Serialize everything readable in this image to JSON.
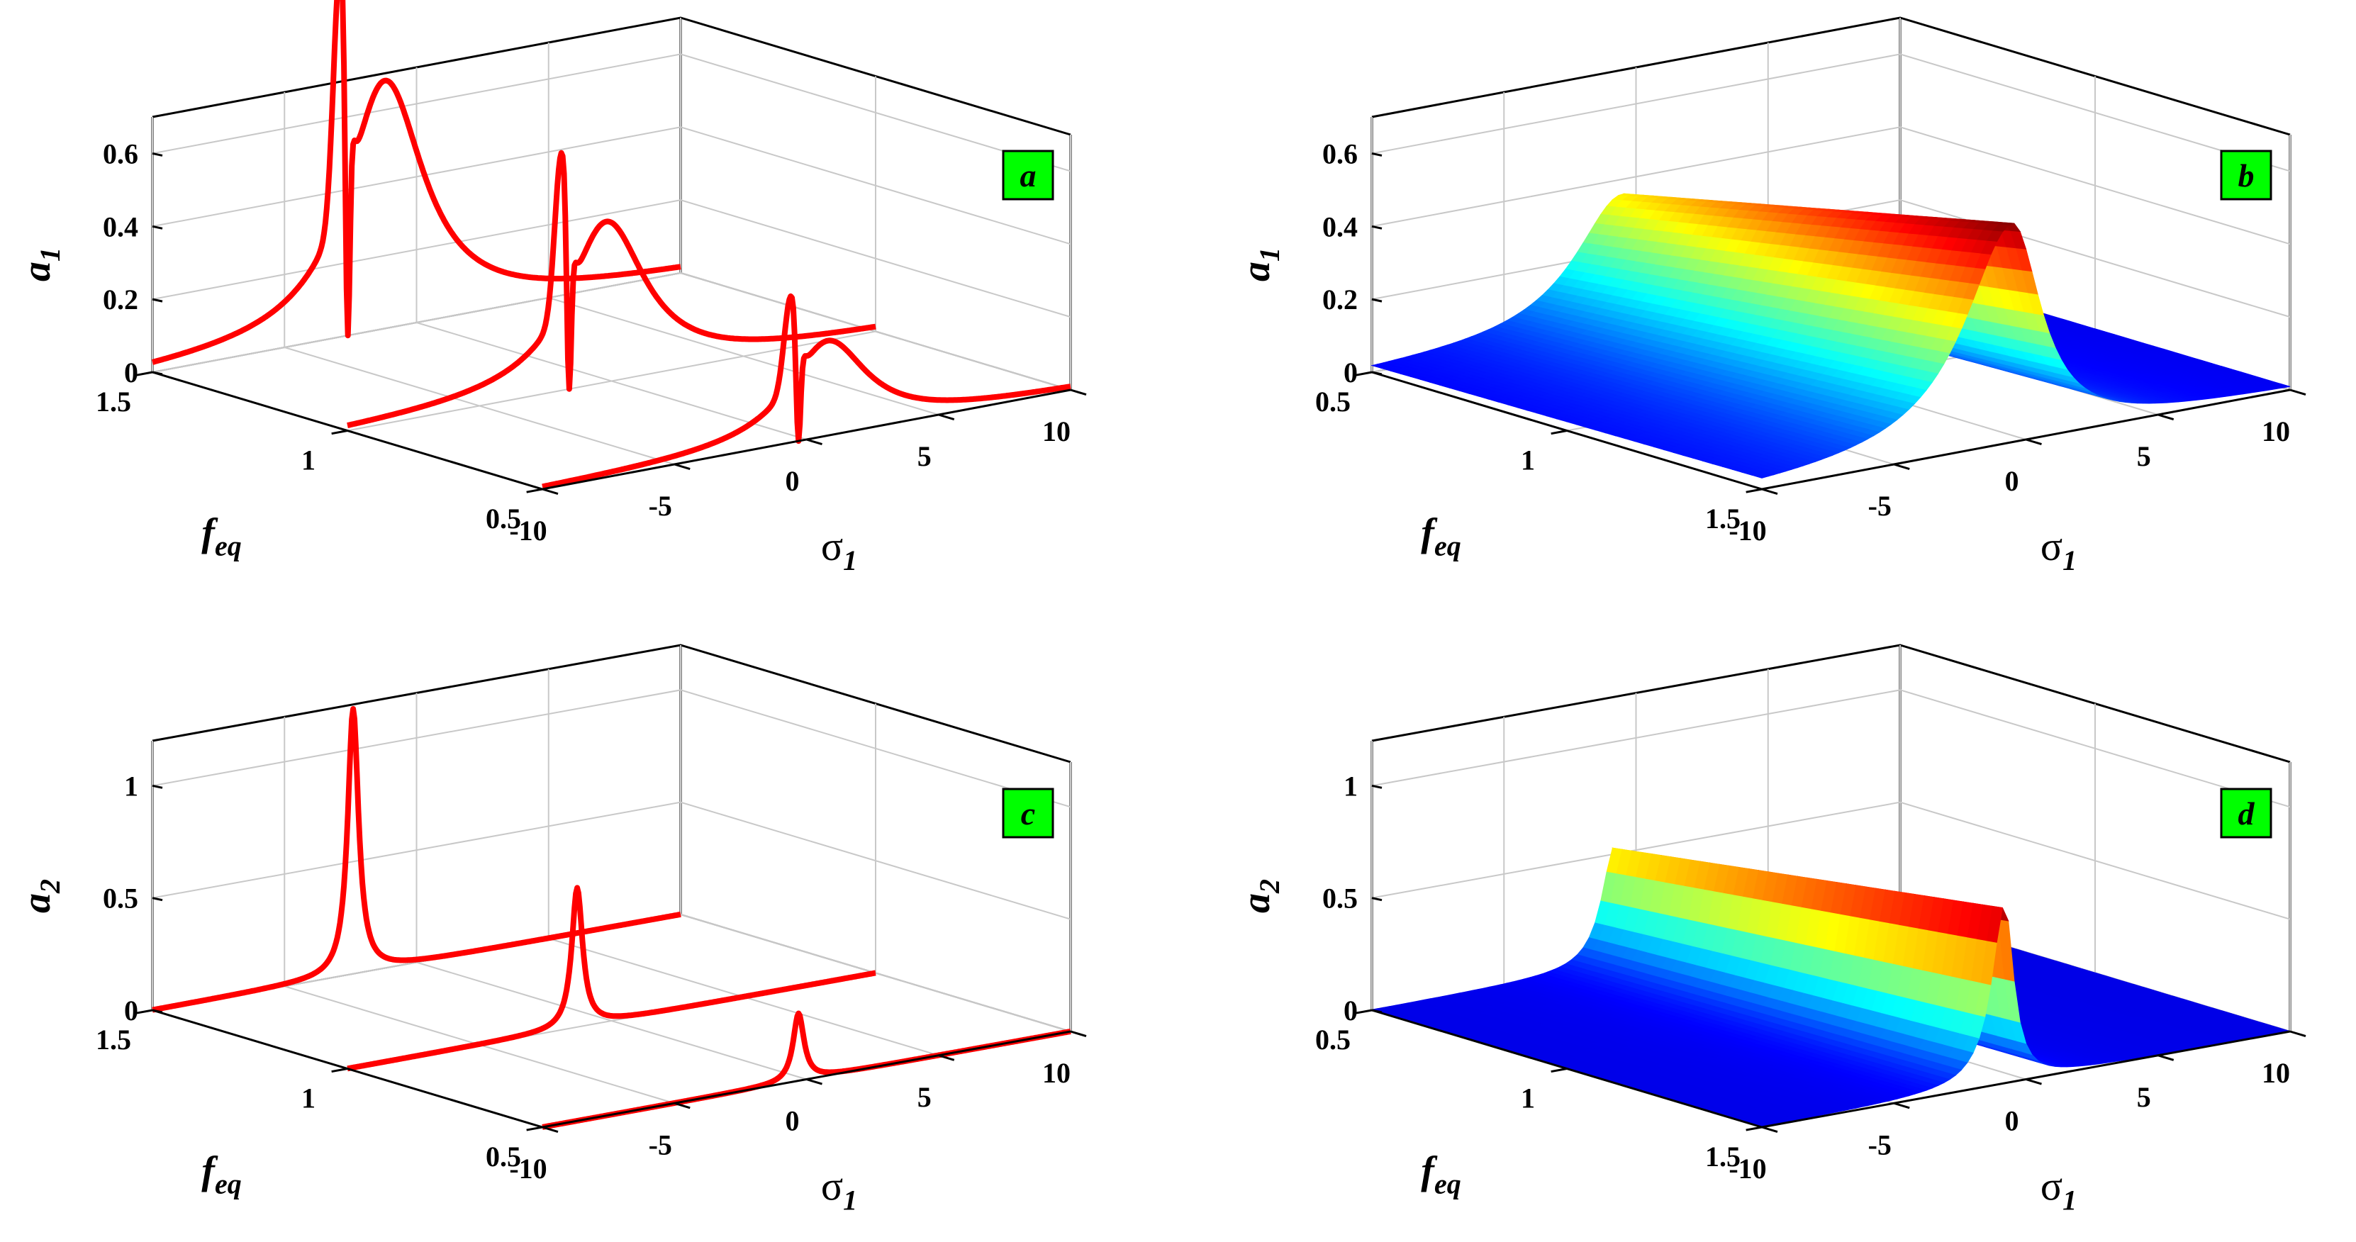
{
  "chart_data": [
    {
      "panel": "a",
      "type": "line3d",
      "badge": "a",
      "xlabel": "σ1",
      "xlabel_main": "σ",
      "xlabel_sub": "1",
      "ylabel": "feq",
      "ylabel_main": "f",
      "ylabel_sub": "eq",
      "zlabel": "a1",
      "zlabel_main": "a",
      "zlabel_sub": "1",
      "xlim": [
        -10,
        10
      ],
      "ylim": [
        0.5,
        1.5
      ],
      "ylim_display": [
        1.5,
        0.5
      ],
      "zlim": [
        0,
        0.7
      ],
      "xticks": [
        -10,
        -5,
        0,
        5,
        10
      ],
      "yticks": [
        0.5,
        1,
        1.5
      ],
      "zticks": [
        0,
        0.2,
        0.4,
        0.6
      ],
      "xtick_labels": [
        "-10",
        "-5",
        "0",
        "5",
        "10"
      ],
      "ytick_labels": [
        "0.5",
        "1",
        "1.5"
      ],
      "ztick_labels": [
        "0",
        "0.2",
        "0.4",
        "0.6"
      ],
      "series_color": "#ff0000",
      "curves": [
        {
          "feq": 1.5,
          "peak_sigma": -1.2,
          "peak_value": 0.68,
          "dip_sigma": -2.6,
          "dip_value": 0.02,
          "sharp_peak_value": 0.66
        },
        {
          "feq": 1.0,
          "peak_sigma": -0.2,
          "peak_value": 0.44,
          "dip_sigma": -1.6,
          "dip_value": 0.0,
          "sharp_peak_value": 0.42
        },
        {
          "feq": 0.5,
          "peak_sigma": 0.8,
          "peak_value": 0.26,
          "dip_sigma": -0.3,
          "dip_value": 0.0,
          "sharp_peak_value": 0.24
        }
      ]
    },
    {
      "panel": "b",
      "type": "surface",
      "badge": "b",
      "xlabel": "σ1",
      "xlabel_main": "σ",
      "xlabel_sub": "1",
      "ylabel": "feq",
      "ylabel_main": "f",
      "ylabel_sub": "eq",
      "zlabel": "a1",
      "zlabel_main": "a",
      "zlabel_sub": "1",
      "xlim": [
        -10,
        10
      ],
      "ylim": [
        0.5,
        1.5
      ],
      "ylim_display": [
        0.5,
        1.5
      ],
      "zlim": [
        0,
        0.7
      ],
      "xticks": [
        -10,
        -5,
        0,
        5,
        10
      ],
      "yticks": [
        0.5,
        1,
        1.5
      ],
      "zticks": [
        0,
        0.2,
        0.4,
        0.6
      ],
      "xtick_labels": [
        "-10",
        "-5",
        "0",
        "5",
        "10"
      ],
      "ytick_labels": [
        "0.5",
        "1",
        "1.5"
      ],
      "ztick_labels": [
        "0",
        "0.2",
        "0.4",
        "0.6"
      ],
      "colormap": "jet",
      "ridge": {
        "sigma": -0.5,
        "value_at_feq_0_5": 0.36,
        "value_at_feq_1_5": 0.6
      }
    },
    {
      "panel": "c",
      "type": "line3d",
      "badge": "c",
      "xlabel": "σ1",
      "xlabel_main": "σ",
      "xlabel_sub": "1",
      "ylabel": "feq",
      "ylabel_main": "f",
      "ylabel_sub": "eq",
      "zlabel": "a2",
      "zlabel_main": "a",
      "zlabel_sub": "2",
      "xlim": [
        -10,
        10
      ],
      "ylim": [
        0.5,
        1.5
      ],
      "ylim_display": [
        1.5,
        0.5
      ],
      "zlim": [
        0,
        1.2
      ],
      "xticks": [
        -10,
        -5,
        0,
        5,
        10
      ],
      "yticks": [
        0.5,
        1,
        1.5
      ],
      "zticks": [
        0,
        0.5,
        1
      ],
      "xtick_labels": [
        "-10",
        "-5",
        "0",
        "5",
        "10"
      ],
      "ytick_labels": [
        "0.5",
        "1",
        "1.5"
      ],
      "ztick_labels": [
        "0",
        "0.5",
        "1"
      ],
      "series_color": "#ff0000",
      "curves": [
        {
          "feq": 1.5,
          "peak_sigma": -2.4,
          "peak_value": 1.18
        },
        {
          "feq": 1.0,
          "peak_sigma": -1.3,
          "peak_value": 0.62
        },
        {
          "feq": 0.5,
          "peak_sigma": -0.3,
          "peak_value": 0.3
        }
      ]
    },
    {
      "panel": "d",
      "type": "surface",
      "badge": "d",
      "xlabel": "σ1",
      "xlabel_main": "σ",
      "xlabel_sub": "1",
      "ylabel": "feq",
      "ylabel_main": "f",
      "ylabel_sub": "eq",
      "zlabel": "a2",
      "zlabel_main": "a",
      "zlabel_sub": "2",
      "xlim": [
        -10,
        10
      ],
      "ylim": [
        0.5,
        1.5
      ],
      "ylim_display": [
        0.5,
        1.5
      ],
      "zlim": [
        0,
        1.2
      ],
      "xticks": [
        -10,
        -5,
        0,
        5,
        10
      ],
      "yticks": [
        0.5,
        1,
        1.5
      ],
      "zticks": [
        0,
        0.5,
        1
      ],
      "xtick_labels": [
        "-10",
        "-5",
        "0",
        "5",
        "10"
      ],
      "ytick_labels": [
        "0.5",
        "1",
        "1.5"
      ],
      "ztick_labels": [
        "0",
        "0.5",
        "1"
      ],
      "colormap": "jet",
      "ridge": {
        "sigma": -0.8,
        "value_at_feq_0_5": 0.54,
        "value_at_feq_1_5": 0.8
      }
    }
  ],
  "colors": {
    "line": "#ff0000",
    "badge_bg": "#00ff00",
    "axis": "#000000",
    "grid": "#c8c8c8"
  }
}
